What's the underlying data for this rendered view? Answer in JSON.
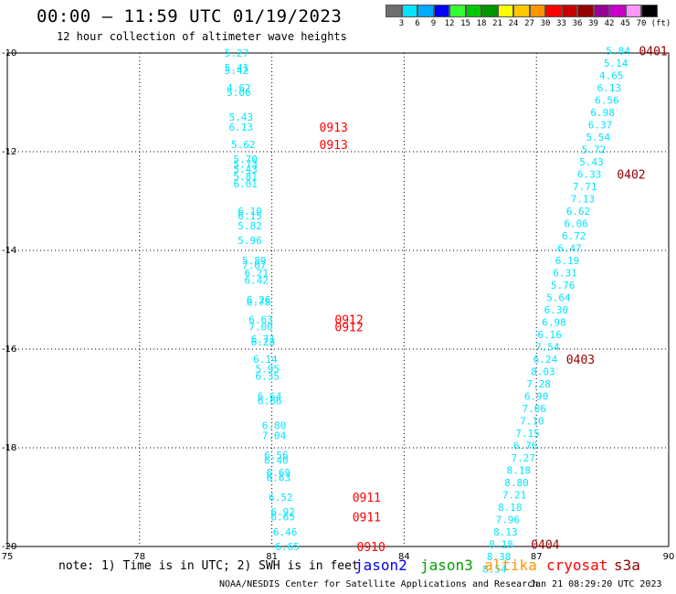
{
  "header": {
    "title": "00:00 – 11:59 UTC 01/19/2023",
    "subtitle": "12 hour collection of altimeter wave heights"
  },
  "colorbar": {
    "unit_label": "(ft)",
    "ticks": [
      "3",
      "6",
      "9",
      "12",
      "15",
      "18",
      "21",
      "24",
      "27",
      "30",
      "33",
      "36",
      "39",
      "42",
      "45",
      "70"
    ],
    "colors": [
      "#6e6e6e",
      "#00e5ff",
      "#00aaff",
      "#0000ff",
      "#33ff33",
      "#00c800",
      "#009600",
      "#ffff00",
      "#ffc800",
      "#ff9600",
      "#ff0000",
      "#c80000",
      "#960000",
      "#960096",
      "#c800c8",
      "#ff96ff",
      "#000000"
    ]
  },
  "footer": {
    "note": "note: 1) Time is in UTC; 2) SWH is in feet",
    "satellites": [
      {
        "name": "jason2",
        "color": "#0000ff"
      },
      {
        "name": "jason3",
        "color": "#00a000"
      },
      {
        "name": "altika",
        "color": "#ff9600"
      },
      {
        "name": "cryosat",
        "color": "#ff0000"
      },
      {
        "name": "s3a",
        "color": "#960000"
      }
    ],
    "credit": "NOAA/NESDIS Center for Satellite Applications and Research",
    "timestamp": "Jan 21 08:29:20 UTC 2023"
  },
  "chart_data": {
    "type": "scatter",
    "title": "00:00 – 11:59 UTC 01/19/2023",
    "subtitle": "12 hour collection of altimeter wave heights",
    "xlim": [
      75,
      90
    ],
    "ylim": [
      -20,
      -10
    ],
    "xticks": [
      "75",
      "78",
      "81",
      "84",
      "87",
      "90"
    ],
    "yticks": [
      "-10",
      "-12",
      "-14",
      "-16",
      "-18",
      "-20"
    ],
    "grid": true,
    "point_color": "#00e5ff",
    "pass_color_red": "#ff0000",
    "pass_color_dark": "#960000",
    "tracks": [
      {
        "points": [
          {
            "x": 80.2,
            "y": -10.0,
            "v": "5.27"
          },
          {
            "x": 80.2,
            "y": -10.3,
            "v": "5.41"
          },
          {
            "x": 80.2,
            "y": -10.35,
            "v": "5.42"
          },
          {
            "x": 80.25,
            "y": -10.7,
            "v": "4.62"
          },
          {
            "x": 80.25,
            "y": -10.8,
            "v": "5.06"
          },
          {
            "x": 80.3,
            "y": -11.3,
            "v": "5.43"
          },
          {
            "x": 80.3,
            "y": -11.5,
            "v": "6.13"
          },
          {
            "x": 80.35,
            "y": -11.85,
            "v": "5.62"
          },
          {
            "x": 80.4,
            "y": -12.15,
            "v": "5.70"
          },
          {
            "x": 80.4,
            "y": -12.25,
            "v": "5.73"
          },
          {
            "x": 80.4,
            "y": -12.35,
            "v": "5.43"
          },
          {
            "x": 80.4,
            "y": -12.5,
            "v": "5.81"
          },
          {
            "x": 80.4,
            "y": -12.65,
            "v": "6.01"
          },
          {
            "x": 80.5,
            "y": -13.2,
            "v": "6.10"
          },
          {
            "x": 80.5,
            "y": -13.3,
            "v": "6.15"
          },
          {
            "x": 80.5,
            "y": -13.5,
            "v": "5.82"
          },
          {
            "x": 80.5,
            "y": -13.8,
            "v": "5.96"
          },
          {
            "x": 80.6,
            "y": -14.2,
            "v": "5.89"
          },
          {
            "x": 80.6,
            "y": -14.3,
            "v": "7.07"
          },
          {
            "x": 80.65,
            "y": -14.45,
            "v": "6.21"
          },
          {
            "x": 80.65,
            "y": -14.6,
            "v": "6.42"
          },
          {
            "x": 80.7,
            "y": -15.0,
            "v": "6.26"
          },
          {
            "x": 80.7,
            "y": -15.05,
            "v": "6.78"
          },
          {
            "x": 80.75,
            "y": -15.4,
            "v": "6.63"
          },
          {
            "x": 80.75,
            "y": -15.55,
            "v": "7.00"
          },
          {
            "x": 80.8,
            "y": -15.8,
            "v": "6.71"
          },
          {
            "x": 80.8,
            "y": -15.85,
            "v": "6.28"
          },
          {
            "x": 80.85,
            "y": -16.2,
            "v": "6.14"
          },
          {
            "x": 80.9,
            "y": -16.4,
            "v": "5.95"
          },
          {
            "x": 80.9,
            "y": -16.55,
            "v": "6.35"
          },
          {
            "x": 80.95,
            "y": -16.95,
            "v": "6.64"
          },
          {
            "x": 80.95,
            "y": -17.05,
            "v": "6.66"
          },
          {
            "x": 81.05,
            "y": -17.55,
            "v": "6.80"
          },
          {
            "x": 81.05,
            "y": -17.75,
            "v": "7.04"
          },
          {
            "x": 81.1,
            "y": -18.15,
            "v": "6.56"
          },
          {
            "x": 81.1,
            "y": -18.25,
            "v": "6.40"
          },
          {
            "x": 81.15,
            "y": -18.5,
            "v": "6.69"
          },
          {
            "x": 81.15,
            "y": -18.6,
            "v": "6.63"
          },
          {
            "x": 81.2,
            "y": -19.0,
            "v": "6.52"
          },
          {
            "x": 81.25,
            "y": -19.3,
            "v": "6.92"
          },
          {
            "x": 81.25,
            "y": -19.4,
            "v": "6.65"
          },
          {
            "x": 81.3,
            "y": -19.7,
            "v": "6.46"
          },
          {
            "x": 81.35,
            "y": -20.0,
            "v": "6.65"
          }
        ],
        "pass_labels": [
          {
            "x": 82.4,
            "y": -11.5,
            "text": "0913",
            "color": "red"
          },
          {
            "x": 82.4,
            "y": -11.85,
            "text": "0913",
            "color": "red"
          },
          {
            "x": 82.75,
            "y": -15.4,
            "text": "0912",
            "color": "red"
          },
          {
            "x": 82.75,
            "y": -15.55,
            "text": "0912",
            "color": "red"
          },
          {
            "x": 83.15,
            "y": -19.0,
            "text": "0911",
            "color": "red"
          },
          {
            "x": 83.15,
            "y": -19.4,
            "text": "0911",
            "color": "red"
          },
          {
            "x": 83.25,
            "y": -20.0,
            "text": "0910",
            "color": "red"
          }
        ]
      },
      {
        "points": [
          {
            "x": 88.85,
            "y": -9.95,
            "v": "5.84"
          },
          {
            "x": 88.8,
            "y": -10.2,
            "v": "5.14"
          },
          {
            "x": 88.7,
            "y": -10.45,
            "v": "4.65"
          },
          {
            "x": 88.65,
            "y": -10.7,
            "v": "6.13"
          },
          {
            "x": 88.6,
            "y": -10.95,
            "v": "6.56"
          },
          {
            "x": 88.5,
            "y": -11.2,
            "v": "6.98"
          },
          {
            "x": 88.45,
            "y": -11.45,
            "v": "6.37"
          },
          {
            "x": 88.4,
            "y": -11.7,
            "v": "5.54"
          },
          {
            "x": 88.3,
            "y": -11.95,
            "v": "5.72"
          },
          {
            "x": 88.25,
            "y": -12.2,
            "v": "5.43"
          },
          {
            "x": 88.2,
            "y": -12.45,
            "v": "6.33"
          },
          {
            "x": 88.1,
            "y": -12.7,
            "v": "7.71"
          },
          {
            "x": 88.05,
            "y": -12.95,
            "v": "7.13"
          },
          {
            "x": 87.95,
            "y": -13.2,
            "v": "6.62"
          },
          {
            "x": 87.9,
            "y": -13.45,
            "v": "6.06"
          },
          {
            "x": 87.85,
            "y": -13.7,
            "v": "6.72"
          },
          {
            "x": 87.75,
            "y": -13.95,
            "v": "6.47"
          },
          {
            "x": 87.7,
            "y": -14.2,
            "v": "6.19"
          },
          {
            "x": 87.65,
            "y": -14.45,
            "v": "6.31"
          },
          {
            "x": 87.6,
            "y": -14.7,
            "v": "5.76"
          },
          {
            "x": 87.5,
            "y": -14.95,
            "v": "5.64"
          },
          {
            "x": 87.45,
            "y": -15.2,
            "v": "6.30"
          },
          {
            "x": 87.4,
            "y": -15.45,
            "v": "6.98"
          },
          {
            "x": 87.3,
            "y": -15.7,
            "v": "6.16"
          },
          {
            "x": 87.25,
            "y": -15.95,
            "v": "7.54"
          },
          {
            "x": 87.2,
            "y": -16.2,
            "v": "6.24"
          },
          {
            "x": 87.15,
            "y": -16.45,
            "v": "8.03"
          },
          {
            "x": 87.05,
            "y": -16.7,
            "v": "7.28"
          },
          {
            "x": 87.0,
            "y": -16.95,
            "v": "6.90"
          },
          {
            "x": 86.95,
            "y": -17.2,
            "v": "7.06"
          },
          {
            "x": 86.9,
            "y": -17.45,
            "v": "7.10"
          },
          {
            "x": 86.8,
            "y": -17.7,
            "v": "7.15"
          },
          {
            "x": 86.75,
            "y": -17.95,
            "v": "6.76"
          },
          {
            "x": 86.7,
            "y": -18.2,
            "v": "7.27"
          },
          {
            "x": 86.6,
            "y": -18.45,
            "v": "8.18"
          },
          {
            "x": 86.55,
            "y": -18.7,
            "v": "8.80"
          },
          {
            "x": 86.5,
            "y": -18.95,
            "v": "7.21"
          },
          {
            "x": 86.4,
            "y": -19.2,
            "v": "8.18"
          },
          {
            "x": 86.35,
            "y": -19.45,
            "v": "7.96"
          },
          {
            "x": 86.3,
            "y": -19.7,
            "v": "8.13"
          },
          {
            "x": 86.2,
            "y": -19.95,
            "v": "8.18"
          },
          {
            "x": 86.15,
            "y": -20.2,
            "v": "8.38"
          },
          {
            "x": 86.05,
            "y": -20.45,
            "v": "8.54"
          }
        ],
        "pass_labels": [
          {
            "x": 89.65,
            "y": -9.95,
            "text": "0401",
            "color": "dark"
          },
          {
            "x": 89.15,
            "y": -12.45,
            "text": "0402",
            "color": "dark"
          },
          {
            "x": 88.0,
            "y": -16.2,
            "text": "0403",
            "color": "dark"
          },
          {
            "x": 87.2,
            "y": -19.95,
            "text": "0404",
            "color": "dark"
          }
        ]
      }
    ]
  }
}
